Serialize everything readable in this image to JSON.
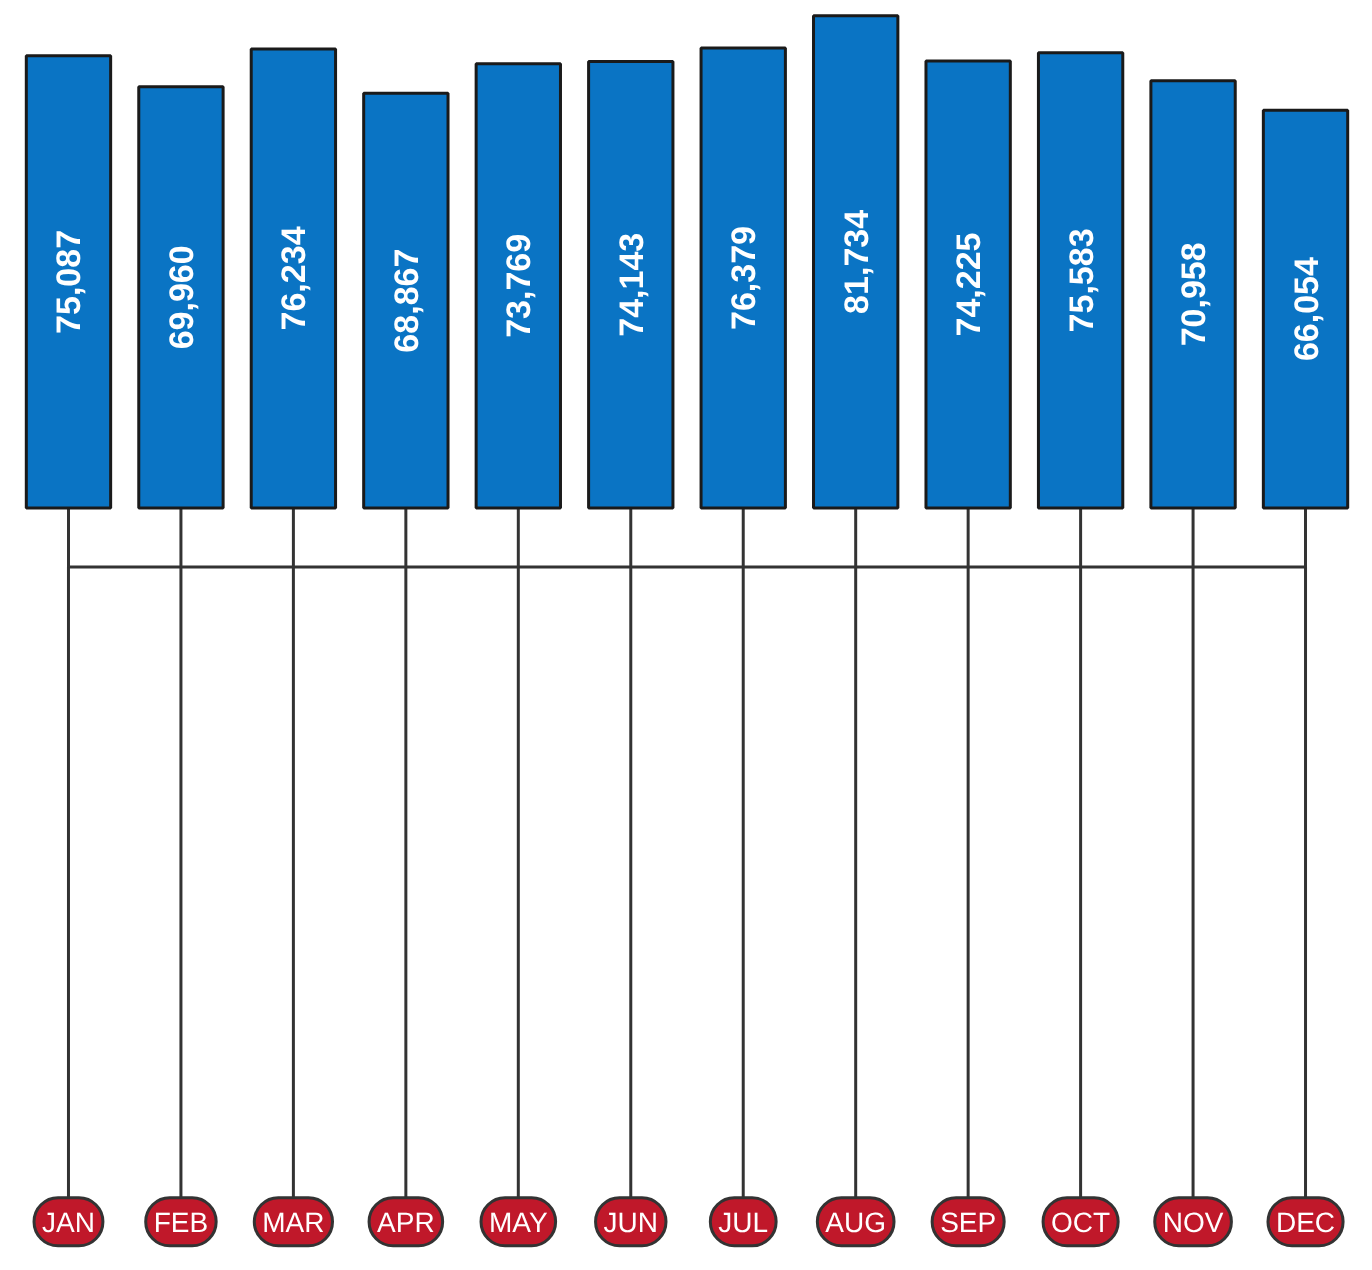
{
  "chart_data": {
    "type": "bar",
    "categories": [
      "JAN",
      "FEB",
      "MAR",
      "APR",
      "MAY",
      "JUN",
      "JUL",
      "AUG",
      "SEP",
      "OCT",
      "NOV",
      "DEC"
    ],
    "values": [
      75087,
      69960,
      76234,
      68867,
      73769,
      74143,
      76379,
      81734,
      74225,
      75583,
      70958,
      66054
    ],
    "value_labels": [
      "75,087",
      "69,960",
      "76,234",
      "68,867",
      "73,769",
      "74,143",
      "76,379",
      "81,734",
      "74,225",
      "75,583",
      "70,958",
      "66,054"
    ],
    "color": "#0a74c4"
  }
}
